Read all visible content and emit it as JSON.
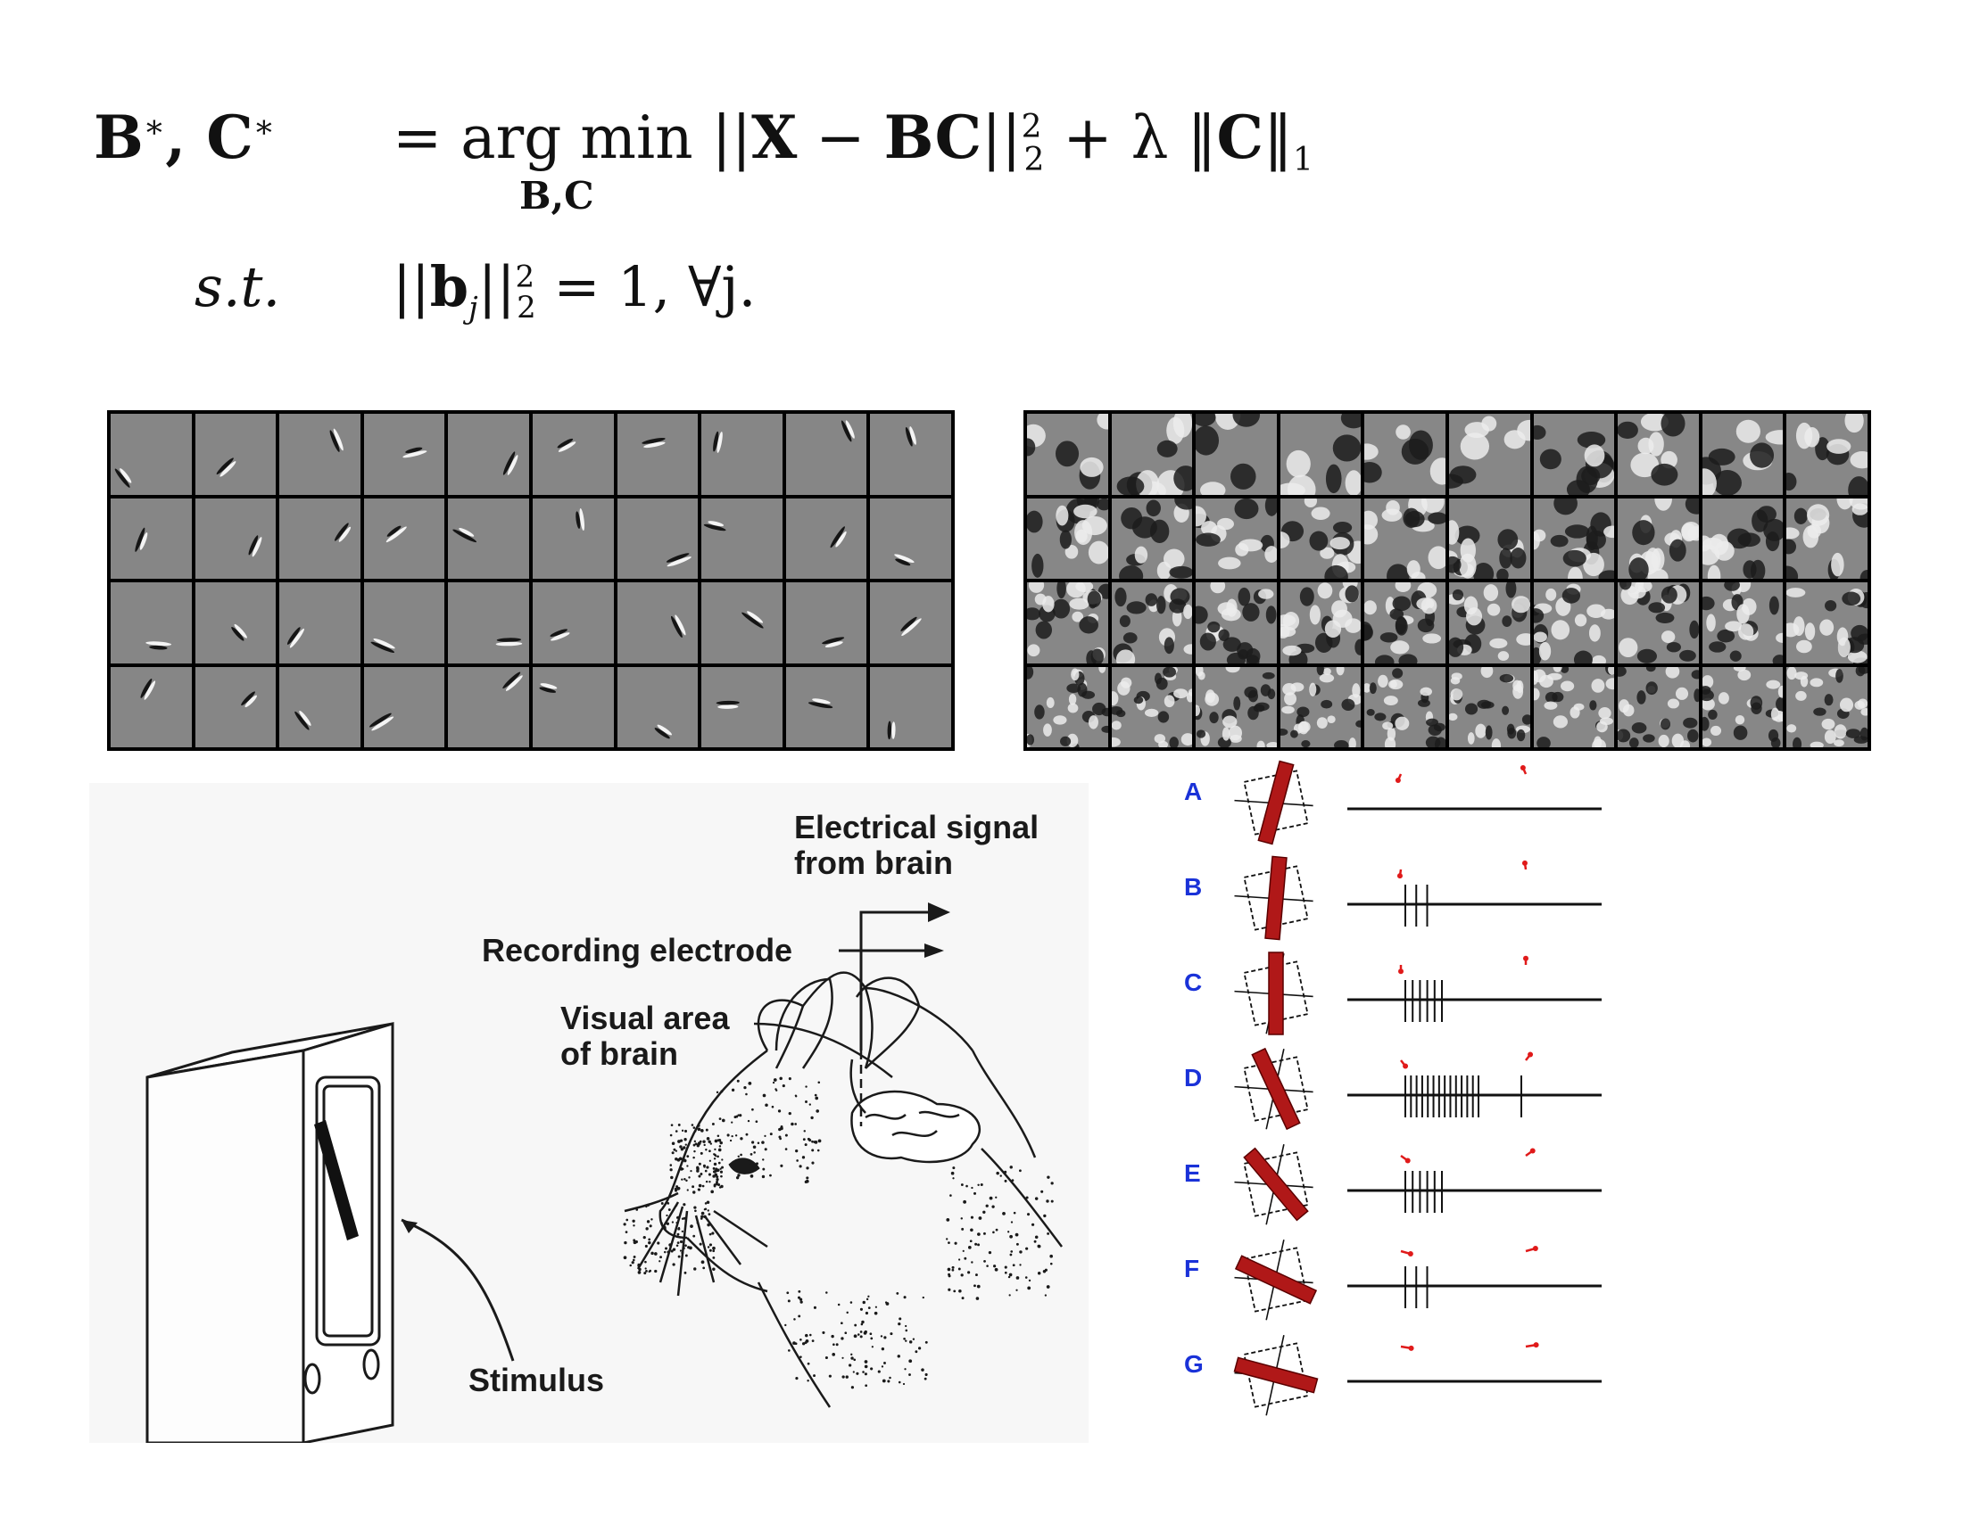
{
  "equation": {
    "lhs_b": "B",
    "lhs_sep": ", ",
    "lhs_c": "C",
    "star": "∗",
    "rhs_prefix": "= arg min ",
    "norm_open": "||",
    "X": "X",
    "minus": " − ",
    "BC": "BC",
    "norm_close": "||",
    "sup2": "2",
    "sub2": "2",
    "plus_lambda": " + λ ",
    "l1_open": "‖",
    "C": "C",
    "l1_close": "‖",
    "sub1": "1",
    "under": "B,C",
    "st": "s.t.",
    "c_open": "||",
    "b": "b",
    "j": "j",
    "c_close": "||",
    "c_rest": " = 1,  ∀j."
  },
  "illustration": {
    "signal_label_line1": "Electrical signal",
    "signal_label_line2": "from brain",
    "electrode_label": "Recording electrode",
    "visual_area_line1": "Visual area",
    "visual_area_line2": "of brain",
    "stimulus_label": "Stimulus"
  },
  "tuning": {
    "rows": [
      {
        "letter": "A",
        "angle": 15,
        "spikes": []
      },
      {
        "letter": "B",
        "angle": 5,
        "spikes": [
          3
        ]
      },
      {
        "letter": "C",
        "angle": 0,
        "spikes": [
          6
        ]
      },
      {
        "letter": "D",
        "angle": -25,
        "spikes": [
          14,
          1
        ]
      },
      {
        "letter": "E",
        "angle": -40,
        "spikes": [
          6
        ]
      },
      {
        "letter": "F",
        "angle": -65,
        "spikes": [
          3
        ]
      },
      {
        "letter": "G",
        "angle": -75,
        "spikes": []
      }
    ]
  },
  "colors": {
    "bar_red": "#b01818",
    "arrow_red": "#e01a1a",
    "letter_blue": "#1a32d8"
  }
}
